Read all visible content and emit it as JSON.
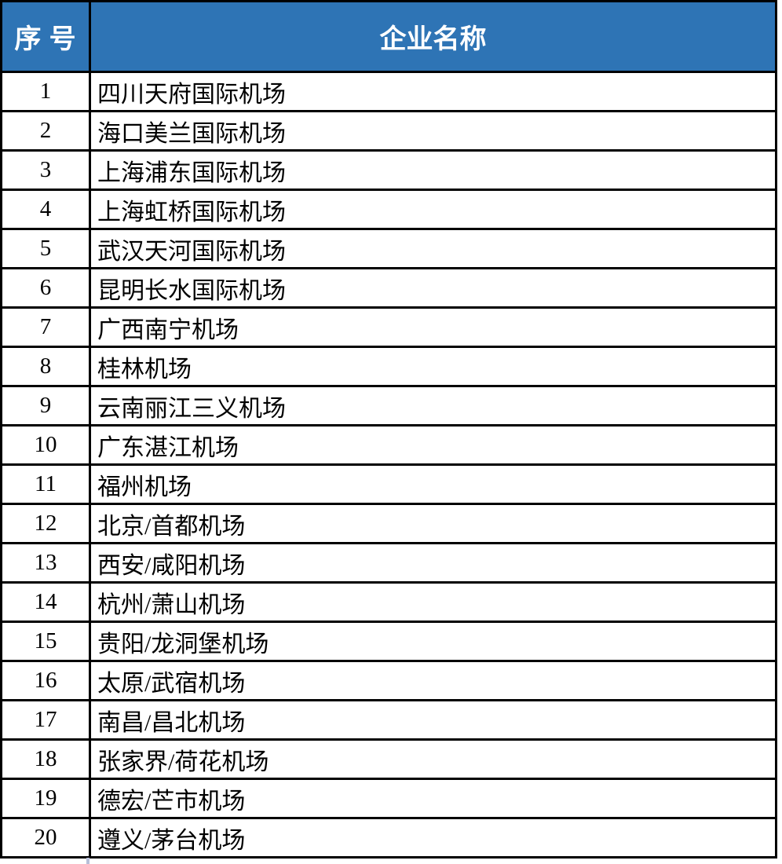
{
  "page": {
    "background": "#FFFFFF"
  },
  "table": {
    "header": {
      "index_label": "序号",
      "name_label": "企业名称"
    },
    "colors": {
      "header_background": "#2E74B5",
      "header_text": "#FFFFFF",
      "border": "#000000",
      "body_text": "#000000"
    },
    "rows": [
      {
        "index": "1",
        "name": "四川天府国际机场"
      },
      {
        "index": "2",
        "name": "海口美兰国际机场"
      },
      {
        "index": "3",
        "name": "上海浦东国际机场"
      },
      {
        "index": "4",
        "name": "上海虹桥国际机场"
      },
      {
        "index": "5",
        "name": "武汉天河国际机场"
      },
      {
        "index": "6",
        "name": "昆明长水国际机场"
      },
      {
        "index": "7",
        "name": "广西南宁机场"
      },
      {
        "index": "8",
        "name": "桂林机场"
      },
      {
        "index": "9",
        "name": "云南丽江三义机场"
      },
      {
        "index": "10",
        "name": "广东湛江机场"
      },
      {
        "index": "11",
        "name": "福州机场"
      },
      {
        "index": "12",
        "name": "北京/首都机场"
      },
      {
        "index": "13",
        "name": "西安/咸阳机场"
      },
      {
        "index": "14",
        "name": "杭州/萧山机场"
      },
      {
        "index": "15",
        "name": "贵阳/龙洞堡机场"
      },
      {
        "index": "16",
        "name": "太原/武宿机场"
      },
      {
        "index": "17",
        "name": "南昌/昌北机场"
      },
      {
        "index": "18",
        "name": "张家界/荷花机场"
      },
      {
        "index": "19",
        "name": "德宏/芒市机场"
      },
      {
        "index": "20",
        "name": "遵义/茅台机场"
      }
    ]
  }
}
